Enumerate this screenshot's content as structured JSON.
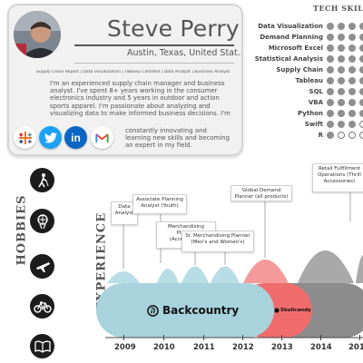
{
  "profile": {
    "name": "Steve Perry",
    "location": "Austin, Texas, United Stat..",
    "fine_print": "Supply Chain Report | Data Visualization | Tableau Certified | Data Analyst | Business Analyst",
    "summary": "I'm an experienced supply chain manager and business analyst. I've spent 8+ years working in the consumer electronics industry and 5 years in outdoor and action sports apparel. I'm passionate about analyzing and visualizing data to make informed business decisions. I'm",
    "summary_cont": "constantly innovating and learning new skills and becoming an expert in my field."
  },
  "social": [
    {
      "icon": "tableau-icon",
      "label": "✻",
      "color": "#ffffff"
    },
    {
      "icon": "twitter-icon",
      "label": "🐦",
      "color": "#1da1f2"
    },
    {
      "icon": "linkedin-icon",
      "label": "in",
      "color": "#0a66c2"
    },
    {
      "icon": "gmail-icon",
      "label": "M",
      "color": "#ffffff"
    }
  ],
  "skills": {
    "title": "TECH SKILL",
    "items": [
      {
        "label": "Data Visualization",
        "level": 5
      },
      {
        "label": "Demand Planning",
        "level": 5
      },
      {
        "label": "Microsoft Excel",
        "level": 5
      },
      {
        "label": "Statistical Analysis",
        "level": 5
      },
      {
        "label": "Supply Chain",
        "level": 5
      },
      {
        "label": "Tableau",
        "level": 5
      },
      {
        "label": "SQL",
        "level": 5
      },
      {
        "label": "VBA",
        "level": 5
      },
      {
        "label": "Python",
        "level": 5
      },
      {
        "label": "Swift",
        "level": 3
      },
      {
        "label": "R",
        "level": 1
      }
    ]
  },
  "hobbies": {
    "title": "HOBBIES",
    "icons": [
      "golf-icon",
      "basketball-icon",
      "airplane-icon",
      "bicycle-icon",
      "book-icon"
    ]
  },
  "experience": {
    "title": "EXPERIENCE",
    "roles": [
      {
        "text": "Data Analyst"
      },
      {
        "text": "Associate Planning Analyst (Youth)"
      },
      {
        "text": "Merchandising Planner (Accessories)"
      },
      {
        "text": "Sr. Merchandising Planner (Men's and Women's)"
      },
      {
        "text": "Global Demand Planner (all products)"
      },
      {
        "text": "Retail Fulfillment Operations (Thrill Accessories)"
      }
    ],
    "companies": [
      {
        "name": "Backcountry",
        "color": "#a8d3dd"
      },
      {
        "name": "Skullcandy",
        "color": "#f06c6c"
      },
      {
        "name": "",
        "color": "#8c8c8c"
      }
    ],
    "years": [
      "2009",
      "2010",
      "2011",
      "2012",
      "2013",
      "2014",
      "201"
    ]
  }
}
